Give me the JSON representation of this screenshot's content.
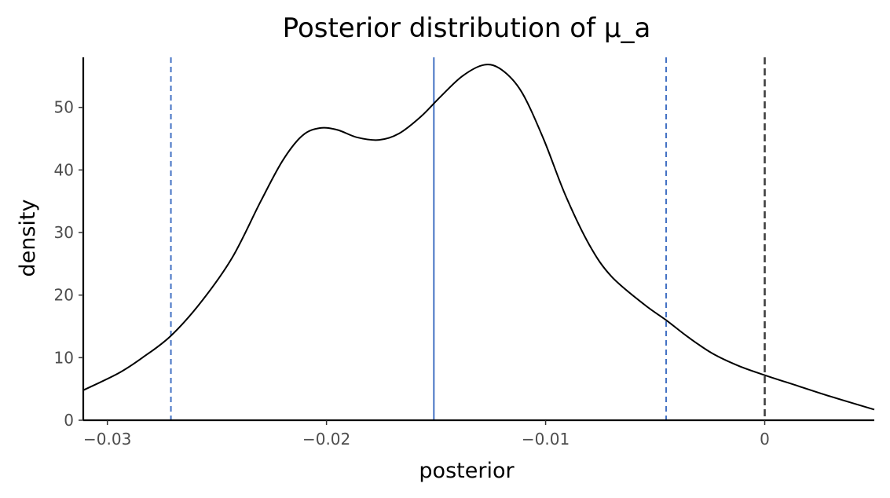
{
  "chart_data": {
    "type": "line",
    "title": "Posterior distribution of μ_a",
    "xlabel": "posterior",
    "ylabel": "density",
    "xlim": [
      -0.0311,
      0.005
    ],
    "ylim": [
      0,
      58
    ],
    "grid": false,
    "legend": "none",
    "x_ticks": [
      {
        "value": -0.03,
        "label": "−0.03"
      },
      {
        "value": -0.02,
        "label": "−0.02"
      },
      {
        "value": -0.01,
        "label": "−0.01"
      },
      {
        "value": 0,
        "label": "0"
      }
    ],
    "y_ticks": [
      {
        "value": 0,
        "label": "0"
      },
      {
        "value": 10,
        "label": "10"
      },
      {
        "value": 20,
        "label": "20"
      },
      {
        "value": 30,
        "label": "30"
      },
      {
        "value": 40,
        "label": "40"
      },
      {
        "value": 50,
        "label": "50"
      }
    ],
    "series": [
      {
        "color": "#000000",
        "x": [
          -0.0311,
          -0.0295,
          -0.0284,
          -0.0271,
          -0.0257,
          -0.0243,
          -0.023,
          -0.022,
          -0.0211,
          -0.0203,
          -0.0195,
          -0.0186,
          -0.0176,
          -0.0167,
          -0.0157,
          -0.0148,
          -0.0138,
          -0.0128,
          -0.012,
          -0.0111,
          -0.0101,
          -0.0091,
          -0.008,
          -0.007,
          -0.0055,
          -0.0045,
          -0.0035,
          -0.0024,
          -0.0012,
          0.0,
          0.0015,
          0.003,
          0.005
        ],
        "values": [
          4.8,
          7.5,
          10.0,
          13.5,
          19.0,
          26.0,
          35.0,
          41.5,
          45.5,
          46.7,
          46.4,
          45.2,
          44.8,
          45.8,
          48.5,
          51.7,
          55.0,
          56.8,
          56.0,
          52.5,
          45.0,
          36.0,
          28.0,
          23.0,
          18.5,
          16.0,
          13.3,
          10.7,
          8.7,
          7.2,
          5.5,
          3.8,
          1.7
        ]
      }
    ],
    "reference_lines": [
      {
        "orientation": "vertical",
        "x": -0.0271,
        "color": "#4472c4",
        "style": "dashed"
      },
      {
        "orientation": "vertical",
        "x": -0.0151,
        "color": "#4472c4",
        "style": "solid"
      },
      {
        "orientation": "vertical",
        "x": -0.0045,
        "color": "#4472c4",
        "style": "dashed"
      },
      {
        "orientation": "vertical",
        "x": 0,
        "color": "#404040",
        "style": "dashed"
      }
    ]
  }
}
